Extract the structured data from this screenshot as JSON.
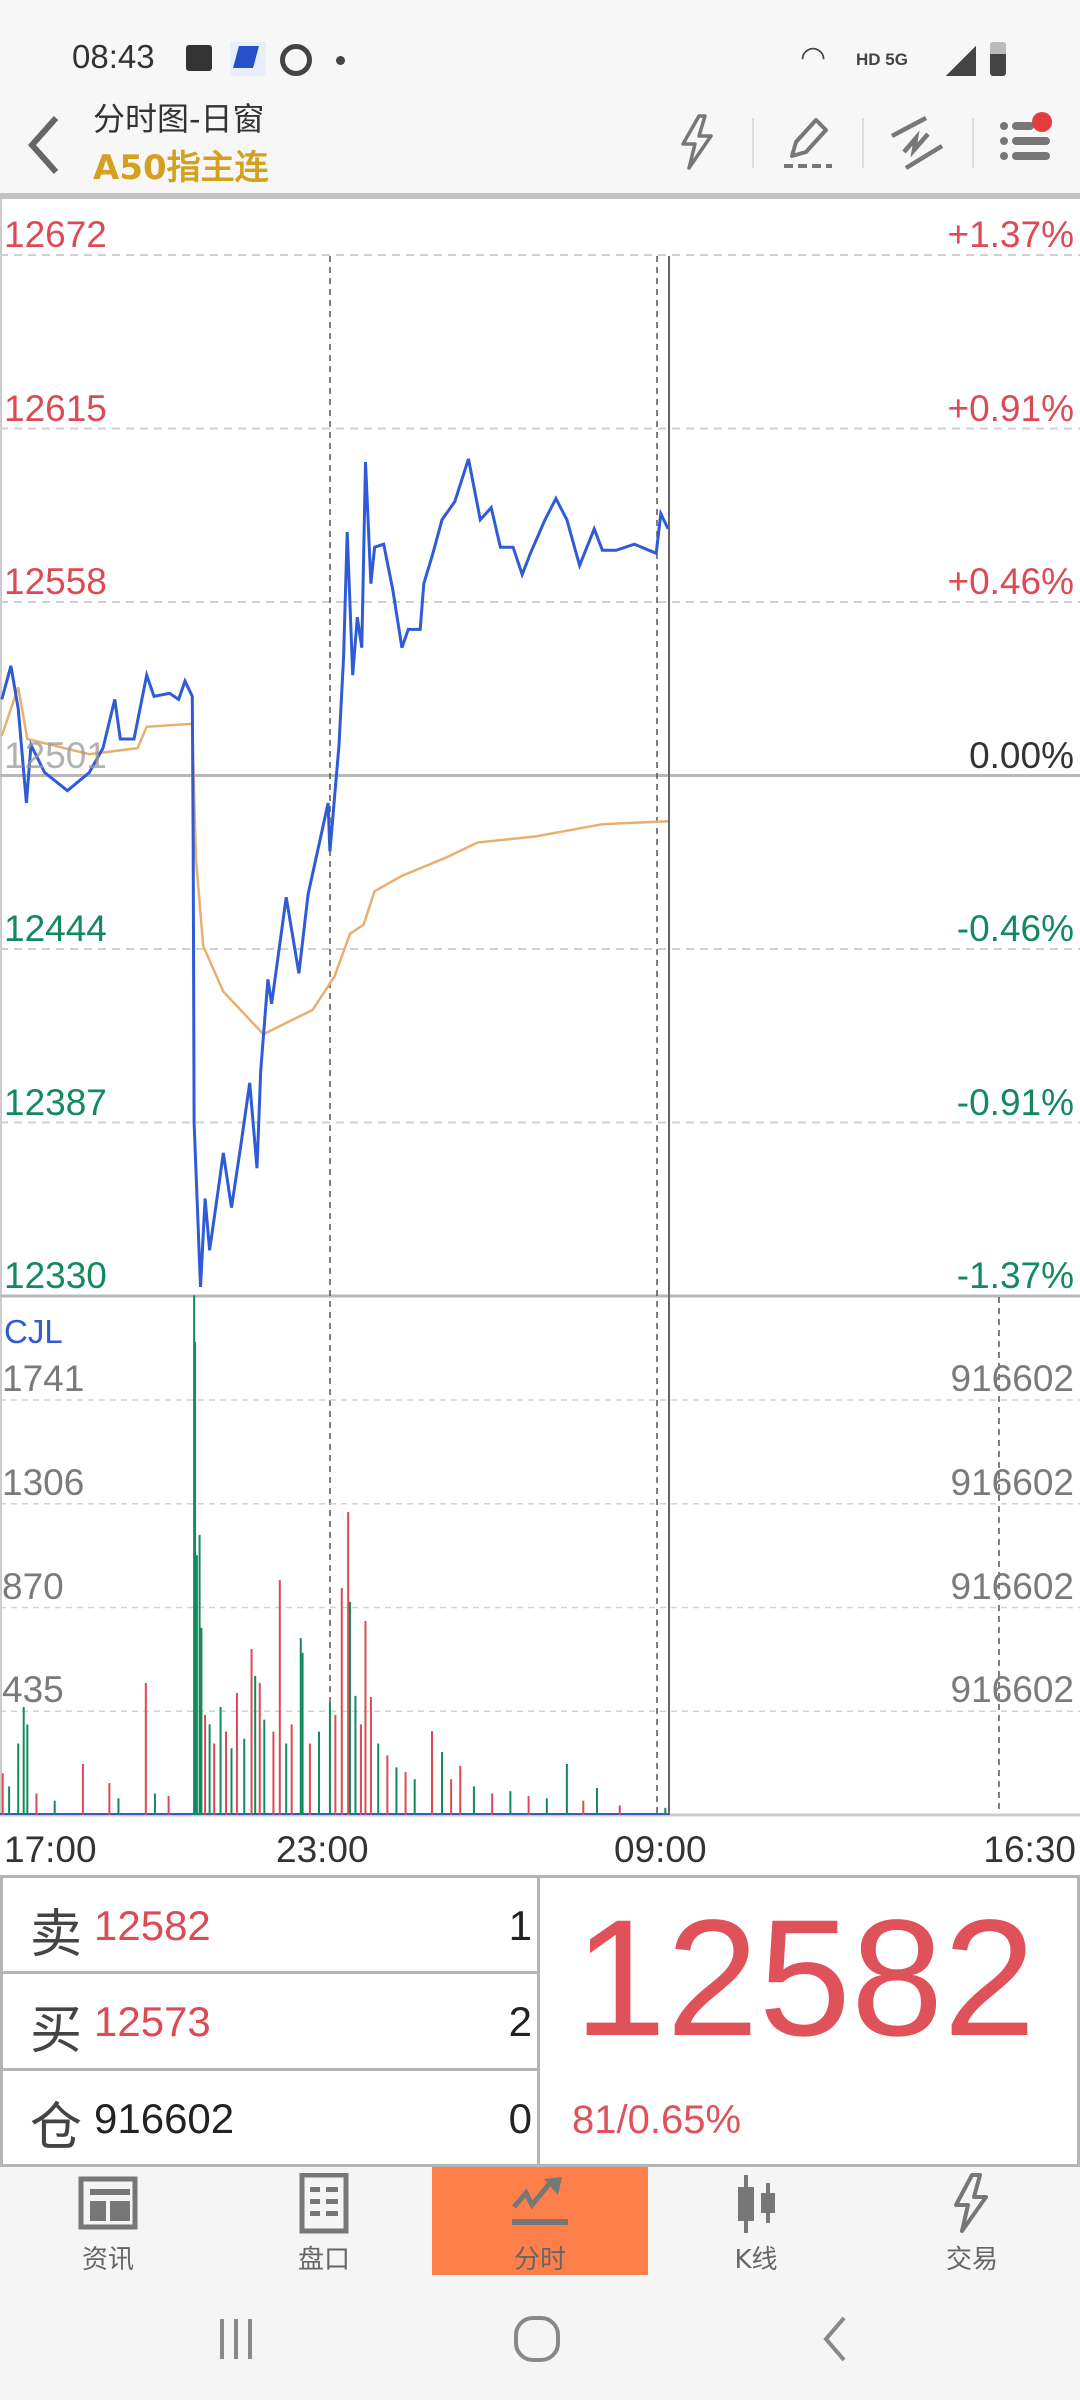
{
  "status_bar": {
    "time": "08:43",
    "network": "HD 5G"
  },
  "header": {
    "title": "分时图-日窗",
    "subtitle": "A50指主连",
    "icons": [
      "lightning-icon",
      "pencil-draw-icon",
      "trendline-icon",
      "menu-list-icon"
    ]
  },
  "colors": {
    "up": "#dc4b55",
    "down": "#138a5e",
    "price_line": "#2f5bd6",
    "avg_line": "#e8af6e",
    "accent": "#ff7f4a",
    "title_gold": "#d4a020"
  },
  "price_axis": {
    "left": [
      "12672",
      "12615",
      "12558",
      "12501",
      "12444",
      "12387",
      "12330"
    ],
    "right": [
      "+1.37%",
      "+0.91%",
      "+0.46%",
      "0.00%",
      "-0.46%",
      "-0.91%",
      "-1.37%"
    ]
  },
  "volume_axis": {
    "title": "CJL",
    "left": [
      "1741",
      "1306",
      "870",
      "435"
    ],
    "right": [
      "916602",
      "916602",
      "916602",
      "916602"
    ]
  },
  "time_axis": [
    "17:00",
    "23:00",
    "09:00",
    "16:30"
  ],
  "chart_data": {
    "type": "line",
    "ylim": [
      12330,
      12672
    ],
    "prev_close": 12501,
    "sessions": [
      "17:00-05:15",
      "09:00-16:30"
    ],
    "price": [
      [
        "17:02",
        12526
      ],
      [
        "17:12",
        12537
      ],
      [
        "17:20",
        12523
      ],
      [
        "17:29",
        12492
      ],
      [
        "17:34",
        12511
      ],
      [
        "17:49",
        12502
      ],
      [
        "18:14",
        12496
      ],
      [
        "18:38",
        12502
      ],
      [
        "18:53",
        12510
      ],
      [
        "19:06",
        12526
      ],
      [
        "19:12",
        12513
      ],
      [
        "19:27",
        12513
      ],
      [
        "19:41",
        12534
      ],
      [
        "19:49",
        12527
      ],
      [
        "20:06",
        12528
      ],
      [
        "20:16",
        12526
      ],
      [
        "20:23",
        12532
      ],
      [
        "20:31",
        12527
      ],
      [
        "20:32",
        12477
      ],
      [
        "20:33",
        12387
      ],
      [
        "20:40",
        12333
      ],
      [
        "20:45",
        12362
      ],
      [
        "20:50",
        12345
      ],
      [
        "21:00",
        12366
      ],
      [
        "21:05",
        12377
      ],
      [
        "21:14",
        12359
      ],
      [
        "21:24",
        12379
      ],
      [
        "21:34",
        12400
      ],
      [
        "21:42",
        12372
      ],
      [
        "21:46",
        12404
      ],
      [
        "21:54",
        12434
      ],
      [
        "21:58",
        12426
      ],
      [
        "22:14",
        12461
      ],
      [
        "22:28",
        12436
      ],
      [
        "22:38",
        12462
      ],
      [
        "22:52",
        12481
      ],
      [
        "23:00",
        12492
      ],
      [
        "23:02",
        12476
      ],
      [
        "23:12",
        12511
      ],
      [
        "23:17",
        12540
      ],
      [
        "23:21",
        12581
      ],
      [
        "23:27",
        12534
      ],
      [
        "23:32",
        12553
      ],
      [
        "23:37",
        12543
      ],
      [
        "23:41",
        12604
      ],
      [
        "23:47",
        12564
      ],
      [
        "23:51",
        12576
      ],
      [
        "00:01",
        12577
      ],
      [
        "00:11",
        12562
      ],
      [
        "00:21",
        12543
      ],
      [
        "00:28",
        12549
      ],
      [
        "00:41",
        12549
      ],
      [
        "00:45",
        12564
      ],
      [
        "00:55",
        12574
      ],
      [
        "01:05",
        12585
      ],
      [
        "01:19",
        12591
      ],
      [
        "01:34",
        12605
      ],
      [
        "01:47",
        12585
      ],
      [
        "01:59",
        12589
      ],
      [
        "02:09",
        12576
      ],
      [
        "02:23",
        12576
      ],
      [
        "02:33",
        12567
      ],
      [
        "02:42",
        12574
      ],
      [
        "02:58",
        12585
      ],
      [
        "03:10",
        12592
      ],
      [
        "03:22",
        12585
      ],
      [
        "03:36",
        12570
      ],
      [
        "03:52",
        12582
      ],
      [
        "04:01",
        12575
      ],
      [
        "04:16",
        12575
      ],
      [
        "04:36",
        12577
      ],
      [
        "05:00",
        12574
      ],
      [
        "05:05",
        12587
      ],
      [
        "05:13",
        12582
      ]
    ],
    "average": [
      [
        "17:02",
        12514
      ],
      [
        "17:20",
        12530
      ],
      [
        "17:30",
        12513
      ],
      [
        "18:38",
        12508
      ],
      [
        "19:31",
        12510
      ],
      [
        "19:41",
        12517
      ],
      [
        "20:31",
        12518
      ],
      [
        "20:35",
        12474
      ],
      [
        "20:43",
        12445
      ],
      [
        "21:05",
        12430
      ],
      [
        "21:49",
        12416
      ],
      [
        "22:43",
        12424
      ],
      [
        "23:07",
        12435
      ],
      [
        "23:24",
        12449
      ],
      [
        "23:39",
        12452
      ],
      [
        "23:51",
        12463
      ],
      [
        "00:21",
        12468
      ],
      [
        "01:09",
        12474
      ],
      [
        "01:44",
        12479
      ],
      [
        "02:48",
        12481
      ],
      [
        "04:01",
        12485
      ],
      [
        "05:13",
        12486
      ]
    ],
    "volume_ylim": [
      0,
      1741
    ],
    "volume": [
      [
        "17:03",
        175,
        "up"
      ],
      [
        "17:10",
        120,
        "down"
      ],
      [
        "17:20",
        300,
        "down"
      ],
      [
        "17:26",
        453,
        "down"
      ],
      [
        "17:30",
        380,
        "down"
      ],
      [
        "17:40",
        90,
        "up"
      ],
      [
        "18:00",
        60,
        "down"
      ],
      [
        "18:31",
        214,
        "up"
      ],
      [
        "19:00",
        134,
        "up"
      ],
      [
        "19:10",
        70,
        "down"
      ],
      [
        "19:40",
        554,
        "up"
      ],
      [
        "19:50",
        90,
        "down"
      ],
      [
        "20:05",
        80,
        "up"
      ],
      [
        "20:33",
        2180,
        "down"
      ],
      [
        "20:34",
        1985,
        "down"
      ],
      [
        "20:36",
        1090,
        "down"
      ],
      [
        "20:39",
        1175,
        "down"
      ],
      [
        "20:41",
        785,
        "down"
      ],
      [
        "20:45",
        420,
        "up"
      ],
      [
        "20:50",
        380,
        "down"
      ],
      [
        "20:55",
        300,
        "up"
      ],
      [
        "21:02",
        453,
        "down"
      ],
      [
        "21:08",
        350,
        "up"
      ],
      [
        "21:14",
        280,
        "down"
      ],
      [
        "21:20",
        512,
        "up"
      ],
      [
        "21:28",
        320,
        "down"
      ],
      [
        "21:36",
        696,
        "up"
      ],
      [
        "21:40",
        583,
        "down"
      ],
      [
        "21:45",
        554,
        "up"
      ],
      [
        "21:50",
        400,
        "down"
      ],
      [
        "22:00",
        350,
        "up"
      ],
      [
        "22:07",
        986,
        "up"
      ],
      [
        "22:14",
        300,
        "down"
      ],
      [
        "22:20",
        380,
        "up"
      ],
      [
        "22:30",
        742,
        "down"
      ],
      [
        "22:32",
        680,
        "down"
      ],
      [
        "22:40",
        300,
        "up"
      ],
      [
        "22:50",
        350,
        "down"
      ],
      [
        "23:02",
        470,
        "down"
      ],
      [
        "23:08",
        420,
        "up"
      ],
      [
        "23:15",
        952,
        "up"
      ],
      [
        "23:22",
        1271,
        "up"
      ],
      [
        "23:24",
        894,
        "down"
      ],
      [
        "23:30",
        500,
        "down"
      ],
      [
        "23:36",
        380,
        "up"
      ],
      [
        "23:41",
        814,
        "up"
      ],
      [
        "23:47",
        495,
        "up"
      ],
      [
        "23:55",
        300,
        "down"
      ],
      [
        "00:05",
        250,
        "up"
      ],
      [
        "00:15",
        200,
        "down"
      ],
      [
        "00:25",
        180,
        "up"
      ],
      [
        "00:35",
        150,
        "down"
      ],
      [
        "00:54",
        352,
        "up"
      ],
      [
        "01:05",
        264,
        "down"
      ],
      [
        "01:15",
        150,
        "up"
      ],
      [
        "01:25",
        206,
        "up"
      ],
      [
        "01:40",
        120,
        "down"
      ],
      [
        "02:00",
        90,
        "up"
      ],
      [
        "02:20",
        100,
        "down"
      ],
      [
        "02:40",
        80,
        "up"
      ],
      [
        "03:00",
        70,
        "down"
      ],
      [
        "03:22",
        214,
        "down"
      ],
      [
        "03:40",
        60,
        "up"
      ],
      [
        "03:55",
        113,
        "down"
      ],
      [
        "04:20",
        40,
        "up"
      ],
      [
        "05:10",
        30,
        "down"
      ]
    ]
  },
  "quote": {
    "rows": [
      {
        "label": "卖",
        "value": "12582",
        "qty": "1"
      },
      {
        "label": "买",
        "value": "12573",
        "qty": "2"
      },
      {
        "label": "仓",
        "value": "916602",
        "qty": "0"
      }
    ],
    "last": "12582",
    "change": "81/0.65%"
  },
  "tabs": [
    {
      "label": "资讯",
      "icon": "news-icon",
      "active": false
    },
    {
      "label": "盘口",
      "icon": "order-book-icon",
      "active": false
    },
    {
      "label": "分时",
      "icon": "intraday-chart-icon",
      "active": true
    },
    {
      "label": "K线",
      "icon": "candlestick-icon",
      "active": false
    },
    {
      "label": "交易",
      "icon": "lightning-icon",
      "active": false
    }
  ]
}
